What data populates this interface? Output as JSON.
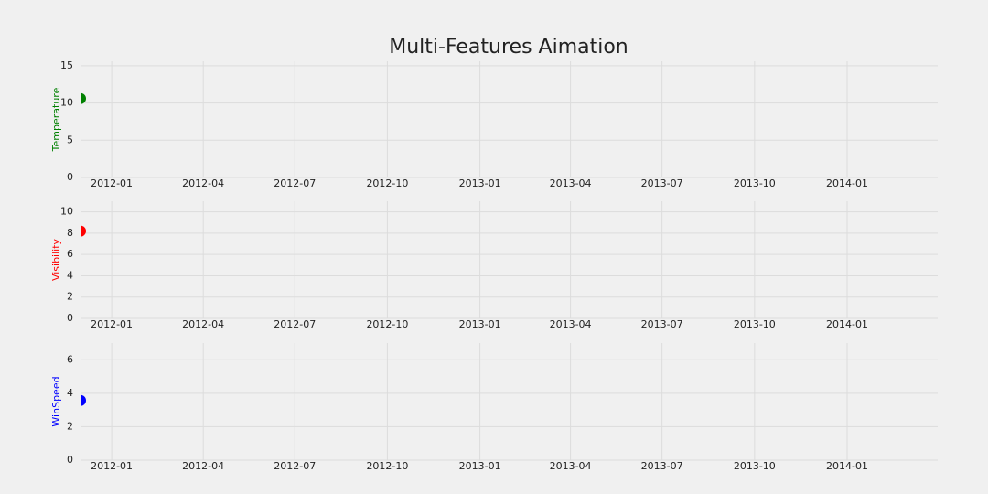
{
  "title": "Multi-Features Aimation",
  "chart_data": [
    {
      "type": "scatter",
      "ylabel": "Temperature",
      "color": "#008000",
      "x": [
        "2011-12"
      ],
      "values": [
        10.6
      ],
      "xlim": [
        "2011-12",
        "2014-04"
      ],
      "ylim": [
        0,
        15.6
      ],
      "xticks": [
        "2012-01",
        "2012-04",
        "2012-07",
        "2012-10",
        "2013-01",
        "2013-04",
        "2013-07",
        "2013-10",
        "2014-01"
      ],
      "yticks": [
        0,
        5,
        10,
        15
      ],
      "grid": true
    },
    {
      "type": "scatter",
      "ylabel": "Visibility",
      "color": "#ff0000",
      "x": [
        "2011-12"
      ],
      "values": [
        8.2
      ],
      "xlim": [
        "2011-12",
        "2014-04"
      ],
      "ylim": [
        0,
        11
      ],
      "xticks": [
        "2012-01",
        "2012-04",
        "2012-07",
        "2012-10",
        "2013-01",
        "2013-04",
        "2013-07",
        "2013-10",
        "2014-01"
      ],
      "yticks": [
        0,
        2,
        4,
        6,
        8,
        10
      ],
      "grid": true
    },
    {
      "type": "scatter",
      "ylabel": "WinSpeed",
      "color": "#0000ff",
      "x": [
        "2011-12"
      ],
      "values": [
        3.57
      ],
      "xlim": [
        "2011-12",
        "2014-04"
      ],
      "ylim": [
        0,
        7
      ],
      "xticks": [
        "2012-01",
        "2012-04",
        "2012-07",
        "2012-10",
        "2013-01",
        "2013-04",
        "2013-07",
        "2013-10",
        "2014-01"
      ],
      "yticks": [
        0,
        2,
        4,
        6
      ],
      "grid": true
    }
  ]
}
